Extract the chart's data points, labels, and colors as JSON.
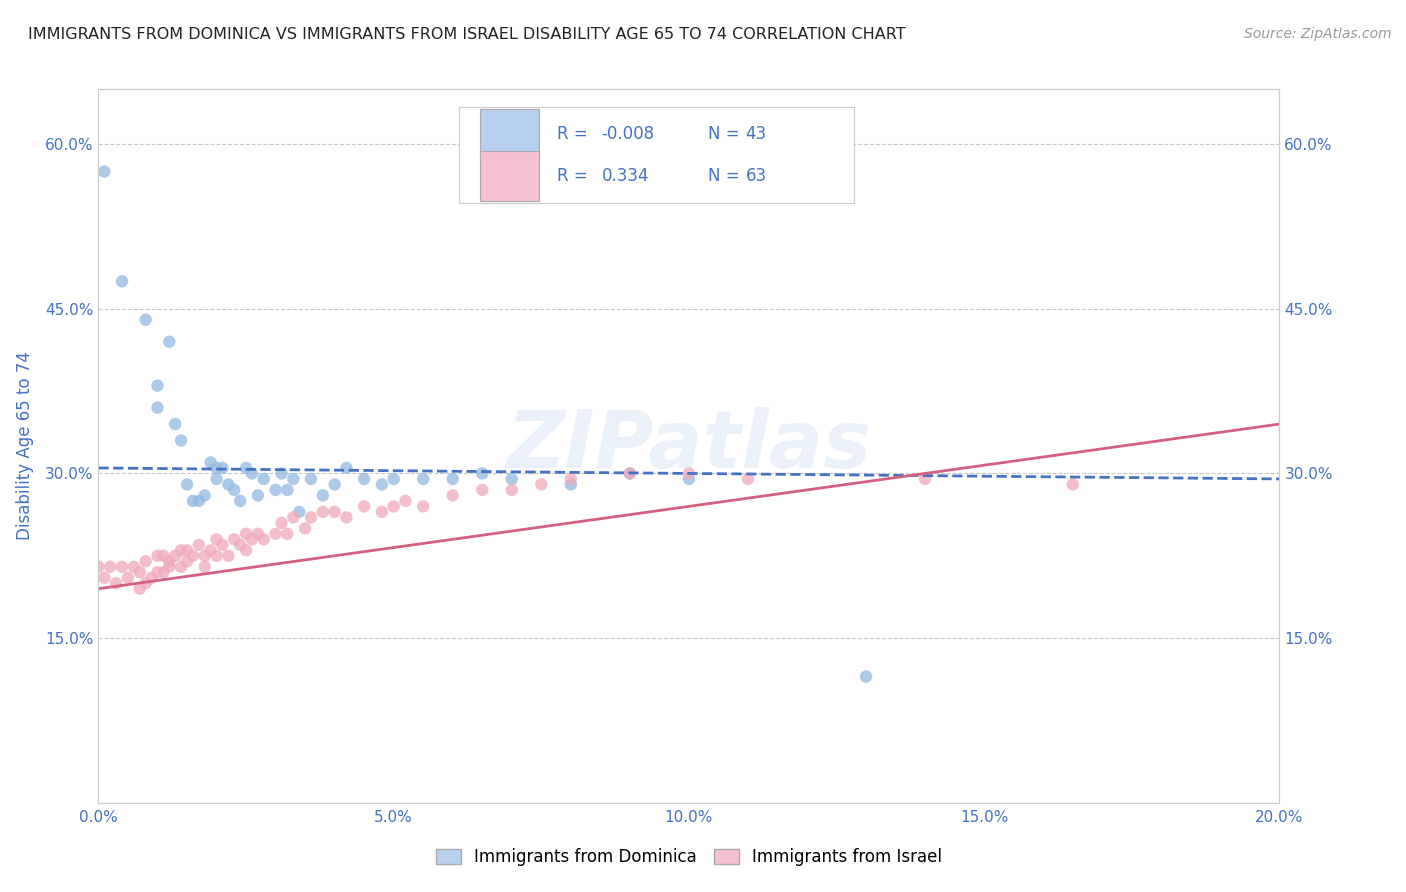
{
  "title": "IMMIGRANTS FROM DOMINICA VS IMMIGRANTS FROM ISRAEL DISABILITY AGE 65 TO 74 CORRELATION CHART",
  "source": "Source: ZipAtlas.com",
  "ylabel": "Disability Age 65 to 74",
  "xlim": [
    0.0,
    0.2
  ],
  "ylim": [
    0.0,
    0.65
  ],
  "yticks": [
    0.15,
    0.3,
    0.45,
    0.6
  ],
  "ytick_labels": [
    "15.0%",
    "30.0%",
    "45.0%",
    "60.0%"
  ],
  "xticks": [
    0.0,
    0.05,
    0.1,
    0.15,
    0.2
  ],
  "xtick_labels": [
    "0.0%",
    "5.0%",
    "10.0%",
    "15.0%",
    "20.0%"
  ],
  "dominica_color": "#92b8e2",
  "israel_color": "#f0a8b8",
  "dominica_line_color": "#4472c4",
  "israel_line_color": "#d46080",
  "legend_dominica_color": "#b8d0ed",
  "legend_israel_color": "#f5c0d0",
  "R_dominica": -0.008,
  "N_dominica": 43,
  "R_israel": 0.334,
  "N_israel": 63,
  "watermark": "ZIPatlas",
  "axis_color": "#4472c4",
  "grid_color": "#c8c8c8",
  "background_color": "#ffffff",
  "dominica_line_y0": 0.305,
  "dominica_line_y1": 0.295,
  "israel_line_y0": 0.195,
  "israel_line_y1": 0.345,
  "dominica_x": [
    0.001,
    0.004,
    0.008,
    0.01,
    0.01,
    0.012,
    0.013,
    0.014,
    0.015,
    0.016,
    0.017,
    0.018,
    0.019,
    0.02,
    0.02,
    0.021,
    0.022,
    0.023,
    0.024,
    0.025,
    0.026,
    0.027,
    0.028,
    0.03,
    0.031,
    0.032,
    0.033,
    0.034,
    0.036,
    0.038,
    0.04,
    0.042,
    0.045,
    0.048,
    0.05,
    0.055,
    0.06,
    0.065,
    0.07,
    0.08,
    0.09,
    0.1,
    0.13
  ],
  "dominica_y": [
    0.575,
    0.475,
    0.44,
    0.38,
    0.36,
    0.42,
    0.345,
    0.33,
    0.29,
    0.275,
    0.275,
    0.28,
    0.31,
    0.305,
    0.295,
    0.305,
    0.29,
    0.285,
    0.275,
    0.305,
    0.3,
    0.28,
    0.295,
    0.285,
    0.3,
    0.285,
    0.295,
    0.265,
    0.295,
    0.28,
    0.29,
    0.305,
    0.295,
    0.29,
    0.295,
    0.295,
    0.295,
    0.3,
    0.295,
    0.29,
    0.3,
    0.295,
    0.115
  ],
  "israel_x": [
    0.0,
    0.001,
    0.002,
    0.003,
    0.004,
    0.005,
    0.006,
    0.007,
    0.007,
    0.008,
    0.008,
    0.009,
    0.01,
    0.01,
    0.011,
    0.011,
    0.012,
    0.012,
    0.013,
    0.014,
    0.014,
    0.015,
    0.015,
    0.016,
    0.017,
    0.018,
    0.018,
    0.019,
    0.02,
    0.02,
    0.021,
    0.022,
    0.023,
    0.024,
    0.025,
    0.025,
    0.026,
    0.027,
    0.028,
    0.03,
    0.031,
    0.032,
    0.033,
    0.035,
    0.036,
    0.038,
    0.04,
    0.042,
    0.045,
    0.048,
    0.05,
    0.052,
    0.055,
    0.06,
    0.065,
    0.07,
    0.075,
    0.08,
    0.09,
    0.1,
    0.11,
    0.14,
    0.165
  ],
  "israel_y": [
    0.215,
    0.205,
    0.215,
    0.2,
    0.215,
    0.205,
    0.215,
    0.195,
    0.21,
    0.22,
    0.2,
    0.205,
    0.21,
    0.225,
    0.21,
    0.225,
    0.22,
    0.215,
    0.225,
    0.23,
    0.215,
    0.22,
    0.23,
    0.225,
    0.235,
    0.215,
    0.225,
    0.23,
    0.225,
    0.24,
    0.235,
    0.225,
    0.24,
    0.235,
    0.245,
    0.23,
    0.24,
    0.245,
    0.24,
    0.245,
    0.255,
    0.245,
    0.26,
    0.25,
    0.26,
    0.265,
    0.265,
    0.26,
    0.27,
    0.265,
    0.27,
    0.275,
    0.27,
    0.28,
    0.285,
    0.285,
    0.29,
    0.295,
    0.3,
    0.3,
    0.295,
    0.295,
    0.29
  ]
}
